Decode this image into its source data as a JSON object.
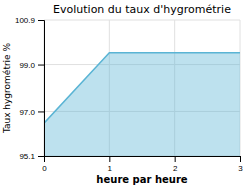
{
  "chart_data": {
    "type": "area",
    "title": "Evolution du taux d'hygrométrie",
    "xlabel": "heure par heure",
    "ylabel": "Taux hygrométrie %",
    "x": [
      0,
      1,
      3
    ],
    "values": [
      96.5,
      99.5,
      99.5
    ],
    "color": "#5ab4d4",
    "xlim": [
      0,
      3
    ],
    "ylim": [
      95.1,
      100.9
    ],
    "xticks": [
      0,
      1,
      2,
      3
    ],
    "yticks": [
      95.1,
      {
        "value": 97.0,
        "label": "97.0"
      },
      {
        "value": 99.0,
        "label": "99.0"
      },
      100.9
    ],
    "grid": true
  }
}
